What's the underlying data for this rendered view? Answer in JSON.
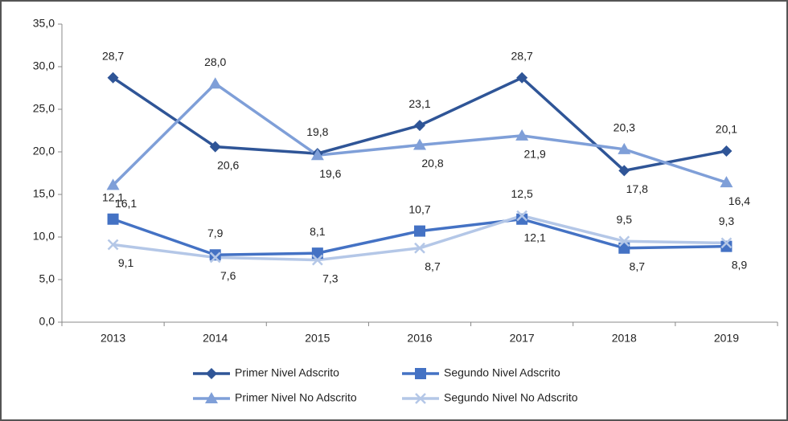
{
  "chart_data": {
    "type": "line",
    "categories": [
      "2013",
      "2014",
      "2015",
      "2016",
      "2017",
      "2018",
      "2019"
    ],
    "series": [
      {
        "name": "Primer Nivel Adscrito",
        "color": "#2f5597",
        "marker": "diamond",
        "values": [
          28.7,
          20.6,
          19.8,
          23.1,
          28.7,
          17.8,
          20.1
        ],
        "value_labels": [
          "28,7",
          "20,6",
          "19,8",
          "23,1",
          "28,7",
          "17,8",
          "20,1"
        ]
      },
      {
        "name": "Segundo Nivel Adscrito",
        "color": "#4472c4",
        "marker": "square",
        "values": [
          12.1,
          7.9,
          8.1,
          10.7,
          12.1,
          8.7,
          8.9
        ],
        "value_labels": [
          "12,1",
          "7,9",
          "8,1",
          "10,7",
          "12,1",
          "8,7",
          "8,9"
        ]
      },
      {
        "name": "Primer Nivel No Adscrito",
        "color": "#7f9fd8",
        "marker": "triangle",
        "values": [
          16.1,
          28.0,
          19.6,
          20.8,
          21.9,
          20.3,
          16.4
        ],
        "value_labels": [
          "16,1",
          "28,0",
          "19,6",
          "20,8",
          "21,9",
          "20,3",
          "16,4"
        ]
      },
      {
        "name": "Segundo Nivel No Adscrito",
        "color": "#b4c7e7",
        "marker": "x",
        "values": [
          9.1,
          7.6,
          7.3,
          8.7,
          12.5,
          9.5,
          9.3
        ],
        "value_labels": [
          "9,1",
          "7,6",
          "7,3",
          "8,7",
          "12,5",
          "9,5",
          "9,3"
        ]
      }
    ],
    "ylim": [
      0,
      35
    ],
    "yticks": [
      {
        "value": 0,
        "label": "0,0"
      },
      {
        "value": 5,
        "label": "5,0"
      },
      {
        "value": 10,
        "label": "10,0"
      },
      {
        "value": 15,
        "label": "15,0"
      },
      {
        "value": 20,
        "label": "20,0"
      },
      {
        "value": 25,
        "label": "25,0"
      },
      {
        "value": 30,
        "label": "30,0"
      },
      {
        "value": 35,
        "label": "35,0"
      }
    ],
    "legend": "bottom"
  }
}
